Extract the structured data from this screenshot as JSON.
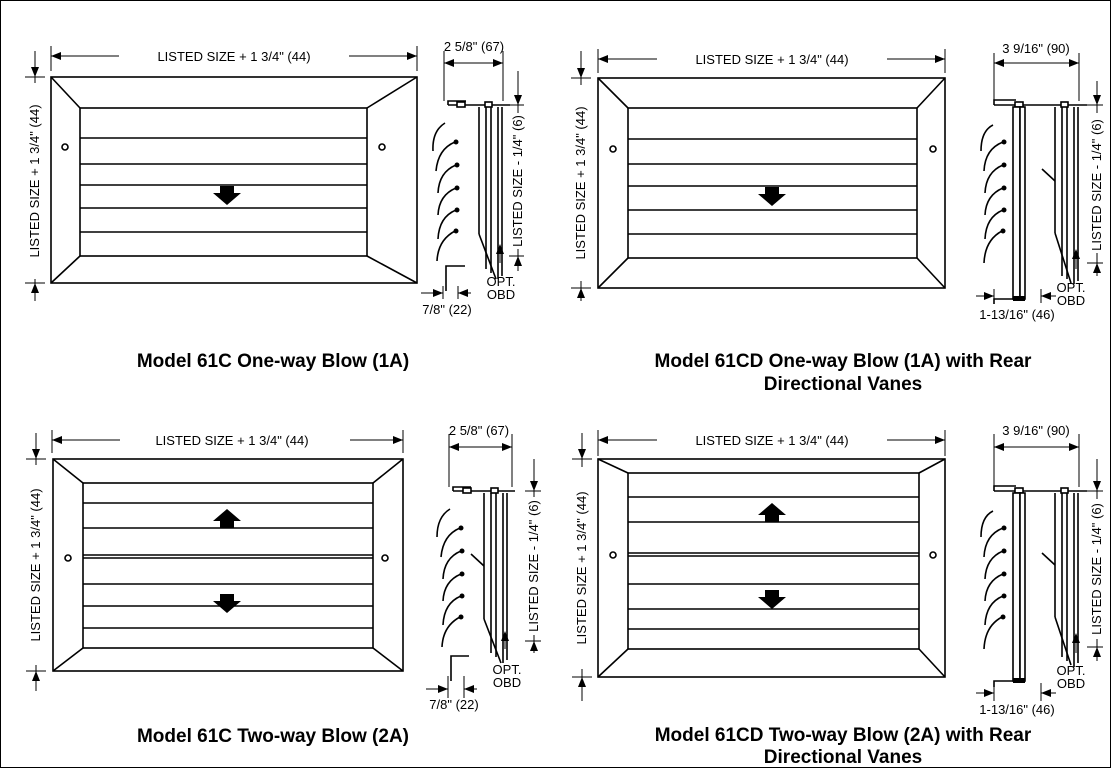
{
  "panels": [
    {
      "title": "Model 61C  One-way Blow (1A)",
      "width_label": "LISTED SIZE + 1 3/4\" (44)",
      "height_label": "LISTED SIZE + 1 3/4\" (44)",
      "depth_label": "2 5/8\" (67)",
      "side_label": "LISTED SIZE - 1/4\" (6)",
      "opt1": "OPT.",
      "opt2": "OBD",
      "flange_label": "7/8\" (22)"
    },
    {
      "title_line1": "Model 61CD  One-way Blow (1A) with Rear",
      "title_line2": "Directional Vanes",
      "width_label": "LISTED SIZE + 1 3/4\" (44)",
      "height_label": "LISTED SIZE + 1 3/4\" (44)",
      "depth_label": "3 9/16\" (90)",
      "side_label": "LISTED SIZE - 1/4\" (6)",
      "opt1": "OPT.",
      "opt2": "OBD",
      "flange_label": "1-13/16\" (46)"
    },
    {
      "title": "Model 61C  Two-way Blow (2A)",
      "width_label": "LISTED SIZE + 1 3/4\" (44)",
      "height_label": "LISTED SIZE + 1 3/4\" (44)",
      "depth_label": "2 5/8\" (67)",
      "side_label": "LISTED SIZE - 1/4\" (6)",
      "opt1": "OPT.",
      "opt2": "OBD",
      "flange_label": "7/8\" (22)"
    },
    {
      "title_line1": "Model 61CD  Two-way Blow (2A) with Rear",
      "title_line2": "Directional Vanes",
      "width_label": "LISTED SIZE + 1 3/4\" (44)",
      "height_label": "LISTED SIZE + 1 3/4\" (44)",
      "depth_label": "3 9/16\" (90)",
      "side_label": "LISTED SIZE - 1/4\" (6)",
      "opt1": "OPT.",
      "opt2": "OBD",
      "flange_label": "1-13/16\" (46)"
    }
  ]
}
